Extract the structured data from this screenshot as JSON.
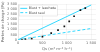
{
  "chart_data": {
    "type": "scatter",
    "xlabel": "Qs (m³ m⁻² h⁻¹)",
    "ylabel": "Pertes de charge (Pa)",
    "xlim": [
      0,
      1600
    ],
    "ylim": [
      0,
      3500
    ],
    "xticks": [
      0,
      500,
      {
        "value": 1000,
        "label": "1 000"
      },
      {
        "value": 1500,
        "label": "1 500"
      }
    ],
    "yticks": [
      0,
      500,
      {
        "value": 1000,
        "label": "1 000"
      },
      {
        "value": 1500,
        "label": "1 500"
      },
      {
        "value": 2000,
        "label": "2 000"
      },
      {
        "value": 2500,
        "label": "2 500"
      },
      {
        "value": 3000,
        "label": "3 000"
      },
      {
        "value": 3500,
        "label": "3 500"
      }
    ],
    "grid": true,
    "legend": "upper left",
    "series": [
      {
        "name": "Biost + leachate",
        "type": "line",
        "color": "#00cfff",
        "line_style": "solid",
        "x": [
          0,
          1500
        ],
        "values": [
          0,
          3400
        ]
      },
      {
        "name": "Biost seul",
        "type": "line",
        "color": "#00cfff",
        "line_style": "dashed",
        "x": [
          0,
          1500
        ],
        "values": [
          0,
          1100
        ]
      },
      {
        "type": "scatter",
        "color": "#111111",
        "marker": "square",
        "x": [
          80,
          150,
          280,
          500,
          680,
          820,
          950,
          1050,
          1150,
          1280,
          1380
        ],
        "values": [
          20,
          40,
          100,
          300,
          650,
          950,
          1300,
          1800,
          2300,
          2900,
          3100
        ]
      }
    ]
  }
}
